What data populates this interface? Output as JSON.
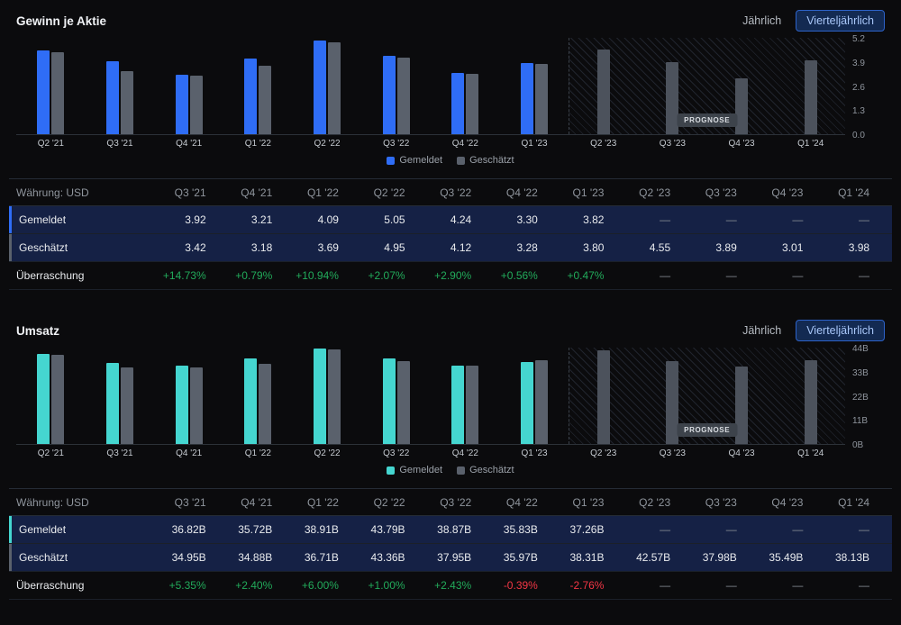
{
  "colors": {
    "background": "#0b0b0d",
    "reported_blue": "#2f6df6",
    "reported_cyan": "#45d6d0",
    "estimated_gray": "#5a616c",
    "estimated_forecast_gray": "#4c525c",
    "positive": "#22ab5b",
    "negative": "#f23645",
    "row_highlight": "#152145",
    "muted_text": "#8f959d"
  },
  "sections": [
    {
      "title": "Gewinn je Aktie",
      "accent": "#2f6df6",
      "controls": {
        "yearly": "Jährlich",
        "quarterly": "Vierteljährlich"
      },
      "forecast_badge": "PROGNOSE",
      "chart_data": {
        "type": "bar",
        "categories": [
          "Q2 '21",
          "Q3 '21",
          "Q4 '21",
          "Q1 '22",
          "Q2 '22",
          "Q3 '22",
          "Q4 '22",
          "Q1 '23",
          "Q2 '23",
          "Q3 '23",
          "Q4 '23",
          "Q1 '24"
        ],
        "series": [
          {
            "name": "Gemeldet",
            "values": [
              4.53,
              3.92,
              3.21,
              4.09,
              5.05,
              4.24,
              3.3,
              3.82,
              null,
              null,
              null,
              null
            ]
          },
          {
            "name": "Geschätzt",
            "values": [
              4.44,
              3.42,
              3.18,
              3.69,
              4.95,
              4.12,
              3.28,
              3.8,
              4.55,
              3.89,
              3.01,
              3.98
            ]
          }
        ],
        "y_ticks": [
          "5.2",
          "3.9",
          "2.6",
          "1.3",
          "0.0"
        ],
        "y_max": 5.2,
        "forecast_start_index": 8,
        "grid": false,
        "legend_position": "bottom"
      },
      "table": {
        "currency_label": "Währung: USD",
        "columns": [
          "Q3 '21",
          "Q4 '21",
          "Q1 '22",
          "Q2 '22",
          "Q3 '22",
          "Q4 '22",
          "Q1 '23",
          "Q2 '23",
          "Q3 '23",
          "Q4 '23",
          "Q1 '24"
        ],
        "rows": [
          {
            "label": "Gemeldet",
            "indicator": "accent",
            "highlight": true,
            "values": [
              "3.92",
              "3.21",
              "4.09",
              "5.05",
              "4.24",
              "3.30",
              "3.82",
              "—",
              "—",
              "—",
              "—"
            ]
          },
          {
            "label": "Geschätzt",
            "indicator": "gray",
            "highlight": true,
            "values": [
              "3.42",
              "3.18",
              "3.69",
              "4.95",
              "4.12",
              "3.28",
              "3.80",
              "4.55",
              "3.89",
              "3.01",
              "3.98"
            ]
          },
          {
            "label": "Überraschung",
            "colored": true,
            "values": [
              "+14.73%",
              "+0.79%",
              "+10.94%",
              "+2.07%",
              "+2.90%",
              "+0.56%",
              "+0.47%",
              "—",
              "—",
              "—",
              "—"
            ]
          }
        ]
      }
    },
    {
      "title": "Umsatz",
      "accent": "#45d6d0",
      "controls": {
        "yearly": "Jährlich",
        "quarterly": "Vierteljährlich"
      },
      "forecast_badge": "PROGNOSE",
      "chart_data": {
        "type": "bar",
        "categories": [
          "Q2 '21",
          "Q3 '21",
          "Q4 '21",
          "Q1 '22",
          "Q2 '22",
          "Q3 '22",
          "Q4 '22",
          "Q1 '23",
          "Q2 '23",
          "Q3 '23",
          "Q4 '23",
          "Q1 '24"
        ],
        "series": [
          {
            "name": "Gemeldet",
            "values": [
              41.12,
              36.82,
              35.72,
              38.91,
              43.79,
              38.87,
              35.83,
              37.26,
              null,
              null,
              null,
              null
            ]
          },
          {
            "name": "Geschätzt",
            "values": [
              40.72,
              34.95,
              34.88,
              36.71,
              43.36,
              37.95,
              35.97,
              38.31,
              42.57,
              37.98,
              35.49,
              38.13
            ]
          }
        ],
        "y_ticks": [
          "44B",
          "33B",
          "22B",
          "11B",
          "0B"
        ],
        "y_max": 44,
        "forecast_start_index": 8,
        "grid": false,
        "legend_position": "bottom"
      },
      "table": {
        "currency_label": "Währung: USD",
        "columns": [
          "Q3 '21",
          "Q4 '21",
          "Q1 '22",
          "Q2 '22",
          "Q3 '22",
          "Q4 '22",
          "Q1 '23",
          "Q2 '23",
          "Q3 '23",
          "Q4 '23",
          "Q1 '24"
        ],
        "rows": [
          {
            "label": "Gemeldet",
            "indicator": "accent",
            "highlight": true,
            "values": [
              "36.82B",
              "35.72B",
              "38.91B",
              "43.79B",
              "38.87B",
              "35.83B",
              "37.26B",
              "—",
              "—",
              "—",
              "—"
            ]
          },
          {
            "label": "Geschätzt",
            "indicator": "gray",
            "highlight": true,
            "values": [
              "34.95B",
              "34.88B",
              "36.71B",
              "43.36B",
              "37.95B",
              "35.97B",
              "38.31B",
              "42.57B",
              "37.98B",
              "35.49B",
              "38.13B"
            ]
          },
          {
            "label": "Überraschung",
            "colored": true,
            "values": [
              "+5.35%",
              "+2.40%",
              "+6.00%",
              "+1.00%",
              "+2.43%",
              "-0.39%",
              "-2.76%",
              "—",
              "—",
              "—",
              "—"
            ]
          }
        ]
      }
    }
  ]
}
